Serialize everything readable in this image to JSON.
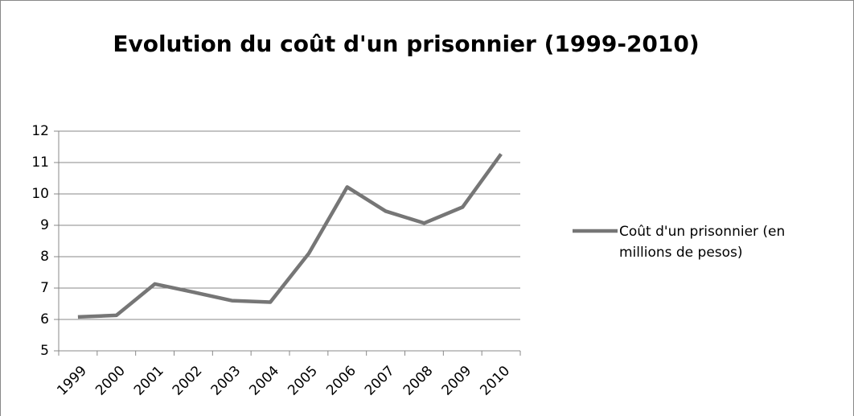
{
  "chart_data": {
    "type": "line",
    "title": "Evolution du coût d'un prisonnier (1999-2010)",
    "categories": [
      "1999",
      "2000",
      "2001",
      "2002",
      "2003",
      "2004",
      "2005",
      "2006",
      "2007",
      "2008",
      "2009",
      "2010"
    ],
    "series": [
      {
        "name": "Coût d'un prisonnier  (en millions de pesos)",
        "color": "#767676",
        "values": [
          6.08,
          6.13,
          7.13,
          6.87,
          6.6,
          6.55,
          8.1,
          10.22,
          9.45,
          9.07,
          9.58,
          11.27
        ]
      }
    ],
    "ylim": [
      5,
      12
    ],
    "yticks": [
      5,
      6,
      7,
      8,
      9,
      10,
      11,
      12
    ],
    "grid": true,
    "legend": "right"
  }
}
